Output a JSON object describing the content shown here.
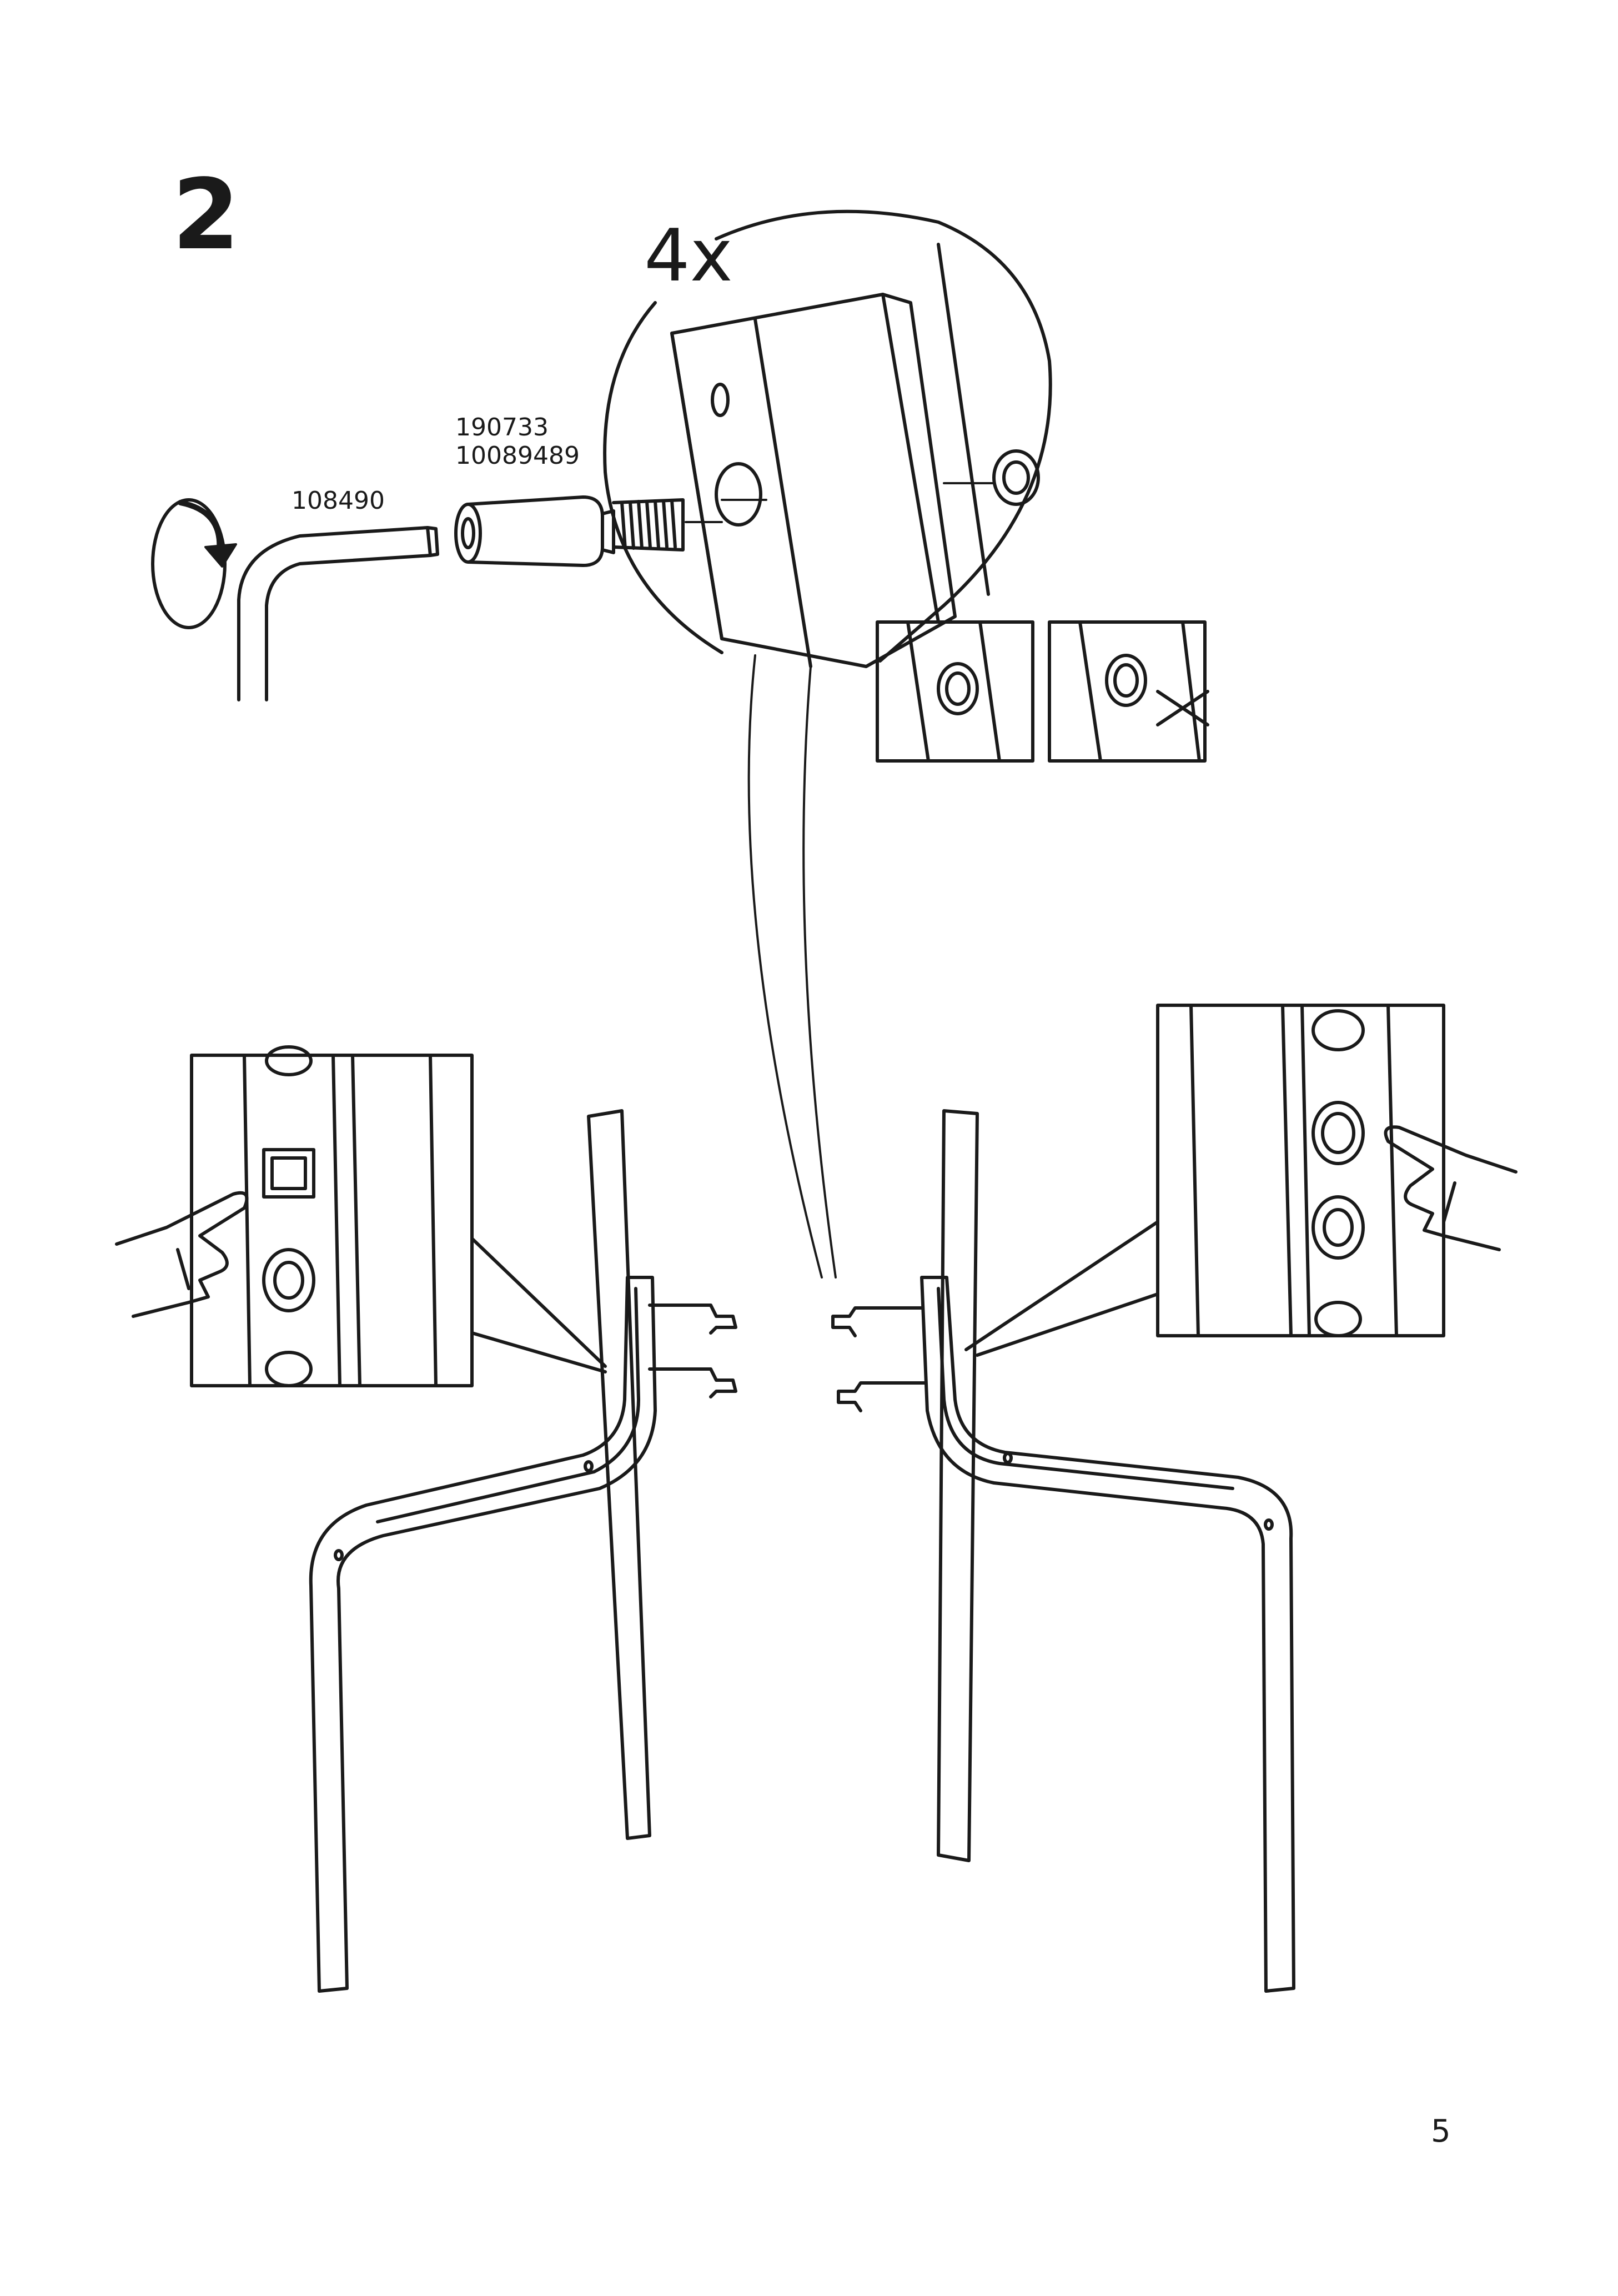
{
  "step_number": "2",
  "quantity": "4x",
  "parts": {
    "insert_ids": [
      "190733",
      "10089489"
    ],
    "key_id": "108490"
  },
  "page_number": "5",
  "icons": {
    "rotate": "rotate-arrow-icon",
    "correct_fit": "flush-insert-icon",
    "wrong_fit": "cross-icon",
    "point_hand": "pointing-hand-icon"
  }
}
